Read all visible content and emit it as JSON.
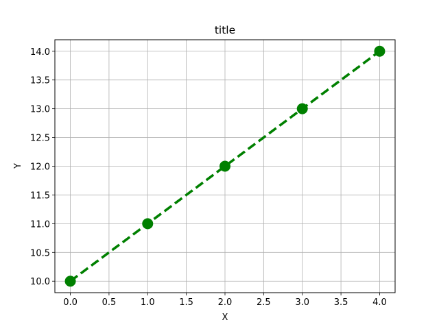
{
  "chart_data": {
    "type": "line",
    "title": "title",
    "xlabel": "X",
    "ylabel": "Y",
    "xlim": [
      -0.2,
      4.2
    ],
    "ylim": [
      9.8,
      14.2
    ],
    "x_ticks": [
      0.0,
      0.5,
      1.0,
      1.5,
      2.0,
      2.5,
      3.0,
      3.5,
      4.0
    ],
    "x_tick_labels": [
      "0.0",
      "0.5",
      "1.0",
      "1.5",
      "2.0",
      "2.5",
      "3.0",
      "3.5",
      "4.0"
    ],
    "y_ticks": [
      10.0,
      10.5,
      11.0,
      11.5,
      12.0,
      12.5,
      13.0,
      13.5,
      14.0
    ],
    "y_tick_labels": [
      "10.0",
      "10.5",
      "11.0",
      "11.5",
      "12.0",
      "12.5",
      "13.0",
      "13.5",
      "14.0"
    ],
    "grid": true,
    "series": [
      {
        "x": [
          0,
          1,
          2,
          3,
          4
        ],
        "y": [
          10,
          11,
          12,
          13,
          14
        ],
        "color": "#008000",
        "line_style": "dashed",
        "marker": "circle"
      }
    ]
  }
}
